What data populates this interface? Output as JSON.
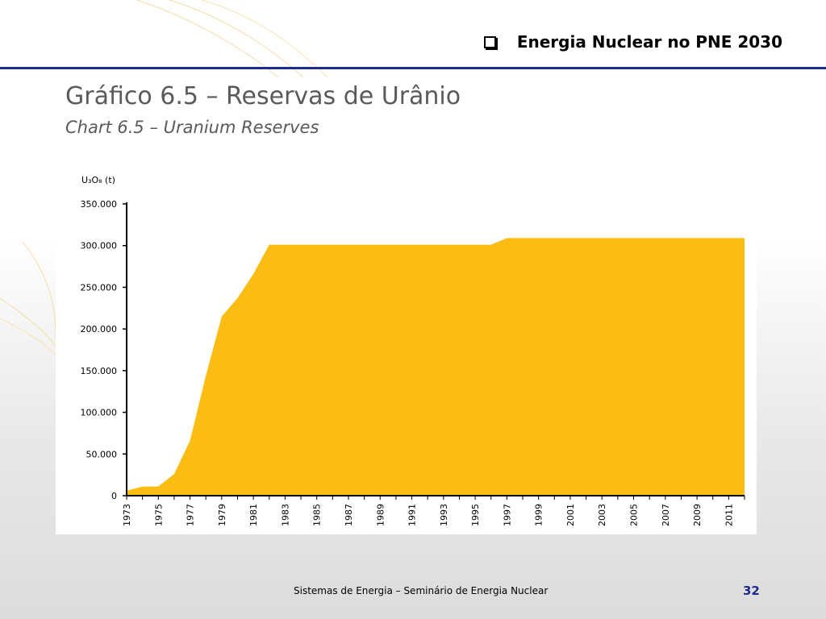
{
  "slide": {
    "title": "Energia Nuclear no PNE 2030",
    "footer": "Sistemas de Energia – Seminário de Energia Nuclear",
    "page_number": "32",
    "accent_color": "#1f2a8f",
    "bullet_icon": "checkbox-bullet-icon"
  },
  "chart_data": {
    "type": "area",
    "title": "Gráfico 6.5 – Reservas de Urânio",
    "subtitle": "Chart 6.5 – Uranium Reserves",
    "ylabel": "U₃O₈ (t)",
    "xlabel": "",
    "ylim": [
      0,
      350000
    ],
    "yticks": [
      0,
      50000,
      100000,
      150000,
      200000,
      250000,
      300000,
      350000
    ],
    "ytick_labels": [
      "0",
      "50.000",
      "100.000",
      "150.000",
      "200.000",
      "250.000",
      "300.000",
      "350.000"
    ],
    "xtick_labels": [
      "1973",
      "1975",
      "1977",
      "1979",
      "1981",
      "1983",
      "1985",
      "1987",
      "1989",
      "1991",
      "1993",
      "1995",
      "1997",
      "1999",
      "2001",
      "2003",
      "2005",
      "2007",
      "2009",
      "2011"
    ],
    "x": [
      1973,
      1974,
      1975,
      1976,
      1977,
      1978,
      1979,
      1980,
      1981,
      1982,
      1983,
      1984,
      1985,
      1986,
      1987,
      1988,
      1989,
      1990,
      1991,
      1992,
      1993,
      1994,
      1995,
      1996,
      1997,
      1998,
      1999,
      2000,
      2001,
      2002,
      2003,
      2004,
      2005,
      2006,
      2007,
      2008,
      2009,
      2010,
      2011,
      2012
    ],
    "values": [
      6000,
      11000,
      11000,
      26000,
      66000,
      144000,
      215000,
      237000,
      266000,
      301000,
      301000,
      301000,
      301000,
      301000,
      301000,
      301000,
      301000,
      301000,
      301000,
      301000,
      301000,
      301000,
      301000,
      301000,
      309000,
      309000,
      309000,
      309000,
      309000,
      309000,
      309000,
      309000,
      309000,
      309000,
      309000,
      309000,
      309000,
      309000,
      309000,
      309000
    ],
    "fill_color": "#fbbd14",
    "grid": false,
    "legend": "none"
  }
}
